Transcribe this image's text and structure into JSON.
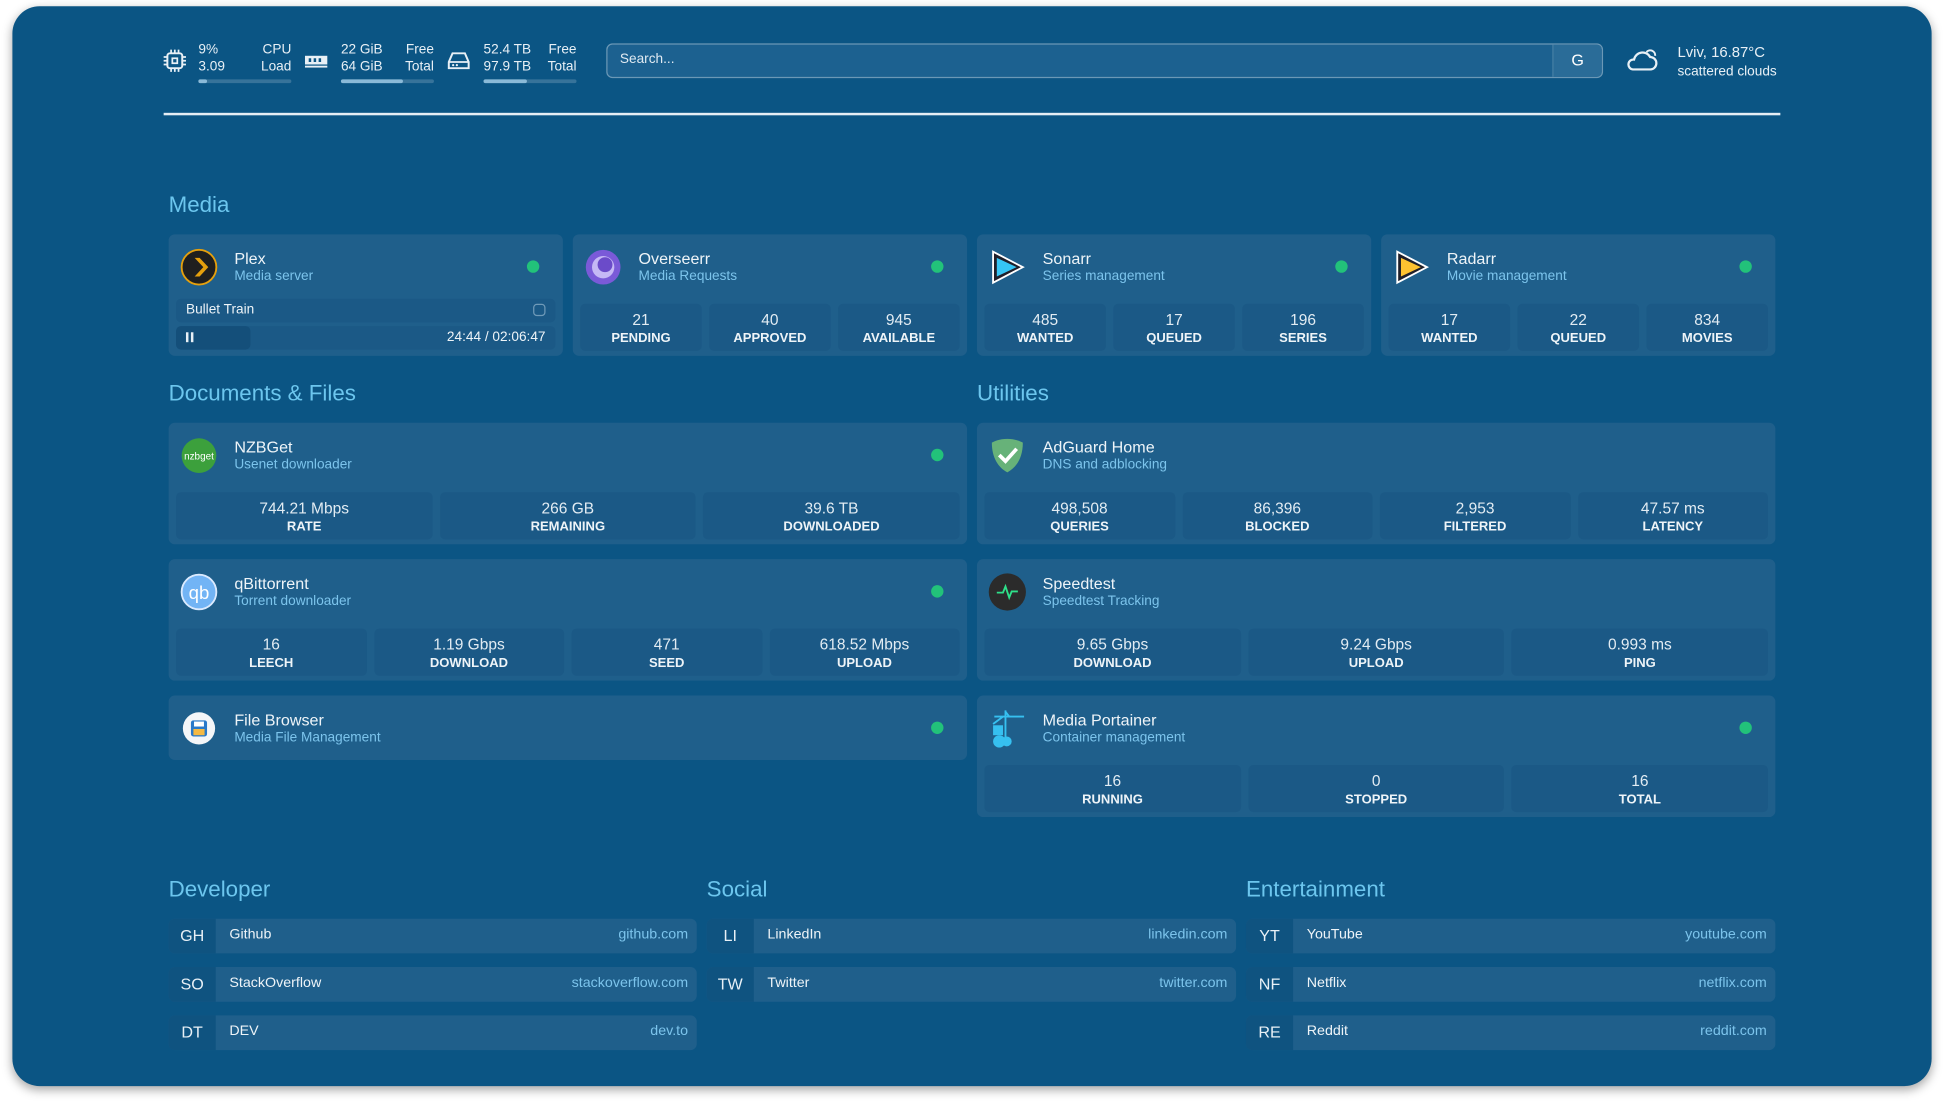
{
  "header": {
    "stats": [
      {
        "icon": "cpu-icon",
        "v1": "9%",
        "v2": "3.09",
        "l1": "CPU",
        "l2": "Load",
        "fill": 0.09
      },
      {
        "icon": "memory-icon",
        "v1": "22 GiB",
        "v2": "64 GiB",
        "l1": "Free",
        "l2": "Total",
        "fill": 0.66
      },
      {
        "icon": "disk-icon",
        "v1": "52.4 TB",
        "v2": "97.9 TB",
        "l1": "Free",
        "l2": "Total",
        "fill": 0.46
      }
    ],
    "search": {
      "placeholder": "Search...",
      "button": "G"
    },
    "weather": {
      "icon": "cloud-icon",
      "line1": "Lviv, 16.87°C",
      "line2": "scattered clouds"
    }
  },
  "colors": {
    "background": "#0b5584",
    "card": "#1f5f8b",
    "accent": "#6cc6ee",
    "status_online": "#22c27a"
  },
  "sections": {
    "media": "Media",
    "documents": "Documents & Files",
    "utilities": "Utilities",
    "developer": "Developer",
    "social": "Social",
    "entertainment": "Entertainment"
  },
  "cards": [
    {
      "id": "plex",
      "title": "Plex",
      "sub": "Media server",
      "icon": "plex-icon",
      "status": "online",
      "now_playing": {
        "title": "Bullet Train",
        "time": "24:44 / 02:06:47",
        "progress": 0.195
      }
    },
    {
      "id": "overseerr",
      "title": "Overseerr",
      "sub": "Media Requests",
      "icon": "overseerr-icon",
      "status": "online",
      "stats": [
        {
          "v": "21",
          "k": "PENDING"
        },
        {
          "v": "40",
          "k": "APPROVED"
        },
        {
          "v": "945",
          "k": "AVAILABLE"
        }
      ]
    },
    {
      "id": "sonarr",
      "title": "Sonarr",
      "sub": "Series management",
      "icon": "sonarr-icon",
      "status": "online",
      "stats": [
        {
          "v": "485",
          "k": "WANTED"
        },
        {
          "v": "17",
          "k": "QUEUED"
        },
        {
          "v": "196",
          "k": "SERIES"
        }
      ]
    },
    {
      "id": "radarr",
      "title": "Radarr",
      "sub": "Movie management",
      "icon": "radarr-icon",
      "status": "online",
      "stats": [
        {
          "v": "17",
          "k": "WANTED"
        },
        {
          "v": "22",
          "k": "QUEUED"
        },
        {
          "v": "834",
          "k": "MOVIES"
        }
      ]
    },
    {
      "id": "nzbget",
      "title": "NZBGet",
      "sub": "Usenet downloader",
      "icon": "nzbget-icon",
      "status": "online",
      "stats": [
        {
          "v": "744.21 Mbps",
          "k": "RATE"
        },
        {
          "v": "266 GB",
          "k": "REMAINING"
        },
        {
          "v": "39.6 TB",
          "k": "DOWNLOADED"
        }
      ]
    },
    {
      "id": "qbittorrent",
      "title": "qBittorrent",
      "sub": "Torrent downloader",
      "icon": "qbittorrent-icon",
      "status": "online",
      "stats": [
        {
          "v": "16",
          "k": "LEECH"
        },
        {
          "v": "1.19 Gbps",
          "k": "DOWNLOAD"
        },
        {
          "v": "471",
          "k": "SEED"
        },
        {
          "v": "618.52 Mbps",
          "k": "UPLOAD"
        }
      ]
    },
    {
      "id": "filebrowser",
      "title": "File Browser",
      "sub": "Media File Management",
      "icon": "file-browser-icon",
      "status": "online"
    },
    {
      "id": "adguard",
      "title": "AdGuard Home",
      "sub": "DNS and adblocking",
      "icon": "adguard-icon",
      "stats": [
        {
          "v": "498,508",
          "k": "QUERIES"
        },
        {
          "v": "86,396",
          "k": "BLOCKED"
        },
        {
          "v": "2,953",
          "k": "FILTERED"
        },
        {
          "v": "47.57 ms",
          "k": "LATENCY"
        }
      ]
    },
    {
      "id": "speedtest",
      "title": "Speedtest",
      "sub": "Speedtest Tracking",
      "icon": "speedtest-icon",
      "stats": [
        {
          "v": "9.65 Gbps",
          "k": "DOWNLOAD"
        },
        {
          "v": "9.24 Gbps",
          "k": "UPLOAD"
        },
        {
          "v": "0.993 ms",
          "k": "PING"
        }
      ]
    },
    {
      "id": "portainer",
      "title": "Media Portainer",
      "sub": "Container management",
      "icon": "portainer-icon",
      "status": "online",
      "stats": [
        {
          "v": "16",
          "k": "RUNNING"
        },
        {
          "v": "0",
          "k": "STOPPED"
        },
        {
          "v": "16",
          "k": "TOTAL"
        }
      ]
    }
  ],
  "bookmarks": {
    "developer": [
      {
        "abbr": "GH",
        "name": "Github",
        "url": "github.com"
      },
      {
        "abbr": "SO",
        "name": "StackOverflow",
        "url": "stackoverflow.com"
      },
      {
        "abbr": "DT",
        "name": "DEV",
        "url": "dev.to"
      }
    ],
    "social": [
      {
        "abbr": "LI",
        "name": "LinkedIn",
        "url": "linkedin.com"
      },
      {
        "abbr": "TW",
        "name": "Twitter",
        "url": "twitter.com"
      }
    ],
    "entertainment": [
      {
        "abbr": "YT",
        "name": "YouTube",
        "url": "youtube.com"
      },
      {
        "abbr": "NF",
        "name": "Netflix",
        "url": "netflix.com"
      },
      {
        "abbr": "RE",
        "name": "Reddit",
        "url": "reddit.com"
      }
    ]
  }
}
